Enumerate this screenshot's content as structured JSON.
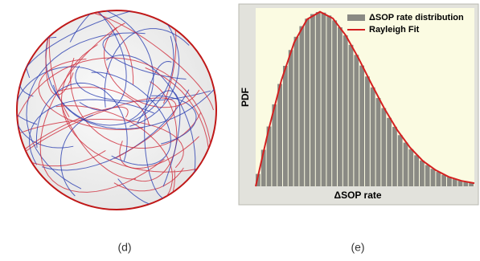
{
  "captions": [
    "(d)",
    "(e)"
  ],
  "chart_data": {
    "type": "histogram",
    "xlabel": "ΔSOP rate",
    "ylabel": "PDF",
    "xlim": [
      0,
      3.4
    ],
    "ylim": [
      0,
      0.62
    ],
    "legend": "upper right",
    "bins": [
      0,
      0.085,
      0.17,
      0.255,
      0.34,
      0.425,
      0.51,
      0.595,
      0.68,
      0.765,
      0.85,
      0.935,
      1.02,
      1.105,
      1.19,
      1.275,
      1.36,
      1.445,
      1.53,
      1.615,
      1.7,
      1.785,
      1.87,
      1.955,
      2.04,
      2.125,
      2.21,
      2.295,
      2.38,
      2.465,
      2.55,
      2.635,
      2.72,
      2.805,
      2.89,
      2.975,
      3.06,
      3.145,
      3.23,
      3.315,
      3.4
    ],
    "series": [
      {
        "name": "ΔSOP rate distribution",
        "color": "#8a8a84",
        "values": [
          0.043,
          0.127,
          0.208,
          0.285,
          0.356,
          0.419,
          0.474,
          0.52,
          0.557,
          0.583,
          0.599,
          0.606,
          0.604,
          0.594,
          0.577,
          0.553,
          0.525,
          0.492,
          0.457,
          0.42,
          0.382,
          0.344,
          0.307,
          0.272,
          0.238,
          0.207,
          0.178,
          0.152,
          0.129,
          0.108,
          0.09,
          0.074,
          0.061,
          0.05,
          0.04,
          0.032,
          0.025,
          0.02,
          0.015,
          0.012
        ]
      },
      {
        "name": "Rayleigh Fit",
        "color": "#d42020",
        "x": [
          0,
          0.2,
          0.4,
          0.6,
          0.8,
          1.0,
          1.2,
          1.4,
          1.6,
          1.8,
          2.0,
          2.2,
          2.4,
          2.6,
          2.8,
          3.0,
          3.2,
          3.4
        ],
        "values": [
          0,
          0.196,
          0.369,
          0.501,
          0.581,
          0.607,
          0.584,
          0.525,
          0.445,
          0.356,
          0.271,
          0.196,
          0.135,
          0.088,
          0.056,
          0.033,
          0.019,
          0.011
        ]
      }
    ]
  }
}
